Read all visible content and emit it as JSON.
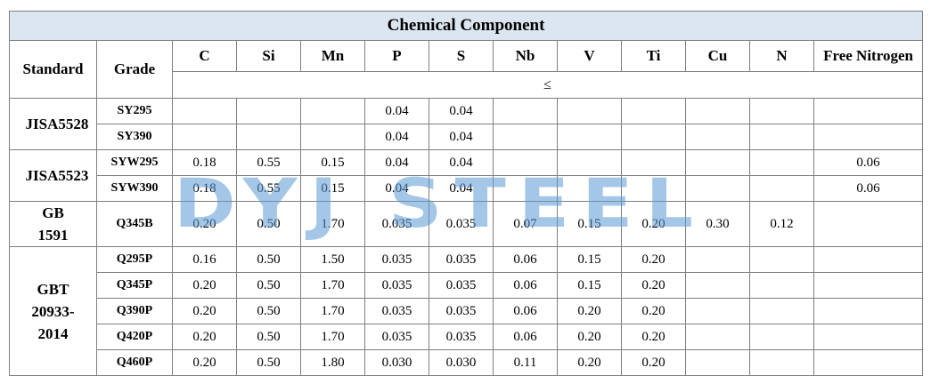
{
  "table": {
    "title": "Chemical Component",
    "head": {
      "standard": "Standard",
      "grade": "Grade",
      "elements": [
        "C",
        "Si",
        "Mn",
        "P",
        "S",
        "Nb",
        "V",
        "Ti",
        "Cu",
        "N",
        "Free Nitrogen"
      ],
      "limit": "≤"
    },
    "groups": [
      {
        "standard": "JISA5528",
        "rows": [
          {
            "grade": "SY295",
            "values": [
              null,
              null,
              null,
              "0.04",
              "0.04",
              null,
              null,
              null,
              null,
              null,
              null
            ]
          },
          {
            "grade": "SY390",
            "values": [
              null,
              null,
              null,
              "0.04",
              "0.04",
              null,
              null,
              null,
              null,
              null,
              null
            ]
          }
        ]
      },
      {
        "standard": "JISA5523",
        "rows": [
          {
            "grade": "SYW295",
            "values": [
              "0.18",
              "0.55",
              "0.15",
              "0.04",
              "0.04",
              null,
              null,
              null,
              null,
              null,
              "0.06"
            ]
          },
          {
            "grade": "SYW390",
            "values": [
              "0.18",
              "0.55",
              "0.15",
              "0.04",
              "0.04",
              null,
              null,
              null,
              null,
              null,
              "0.06"
            ]
          }
        ]
      },
      {
        "standard": "GB 1591",
        "rows": [
          {
            "grade": "Q345B",
            "values": [
              "0.20",
              "0.50",
              "1.70",
              "0.035",
              "0.035",
              "0.07",
              "0.15",
              "0.20",
              "0.30",
              "0.12",
              null
            ]
          }
        ]
      },
      {
        "standard": "GBT 20933-2014",
        "rows": [
          {
            "grade": "Q295P",
            "values": [
              "0.16",
              "0.50",
              "1.50",
              "0.035",
              "0.035",
              "0.06",
              "0.15",
              "0.20",
              null,
              null,
              null
            ]
          },
          {
            "grade": "Q345P",
            "values": [
              "0.20",
              "0.50",
              "1.70",
              "0.035",
              "0.035",
              "0.06",
              "0.15",
              "0.20",
              null,
              null,
              null
            ]
          },
          {
            "grade": "Q390P",
            "values": [
              "0.20",
              "0.50",
              "1.70",
              "0.035",
              "0.035",
              "0.06",
              "0.20",
              "0.20",
              null,
              null,
              null
            ]
          },
          {
            "grade": "Q420P",
            "values": [
              "0.20",
              "0.50",
              "1.70",
              "0.035",
              "0.035",
              "0.06",
              "0.20",
              "0.20",
              null,
              null,
              null
            ]
          },
          {
            "grade": "Q460P",
            "values": [
              "0.20",
              "0.50",
              "1.80",
              "0.030",
              "0.030",
              "0.11",
              "0.20",
              "0.20",
              null,
              null,
              null
            ]
          }
        ]
      }
    ]
  },
  "watermark": "DYJ STEEL"
}
